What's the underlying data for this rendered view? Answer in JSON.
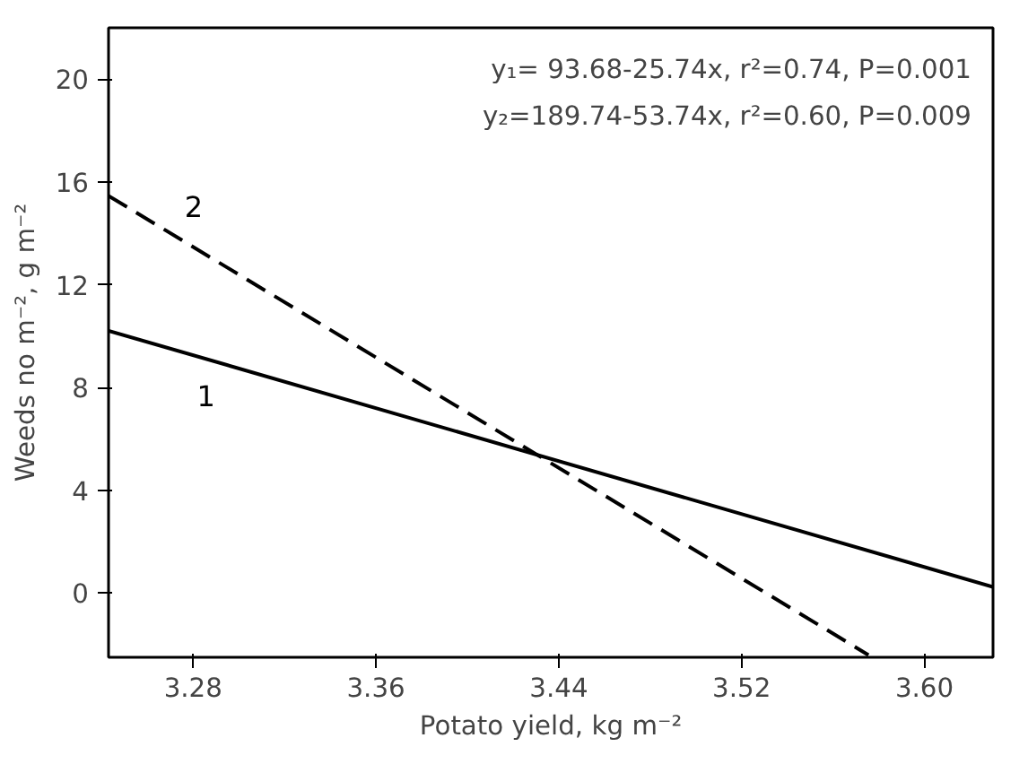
{
  "chart_data": {
    "type": "line",
    "xlabel": "Potato yield, kg m⁻²",
    "ylabel": "Weeds no m⁻², g m⁻²",
    "xlim": [
      3.243,
      3.63
    ],
    "ylim": [
      -2.5,
      22
    ],
    "xticks": [
      3.28,
      3.36,
      3.44,
      3.52,
      {
        "value": 3.6,
        "label": "3.60"
      }
    ],
    "yticks": [
      0,
      4,
      8,
      12,
      16,
      20
    ],
    "grid": false,
    "marker": "none",
    "series": [
      {
        "name": "1",
        "color": "#000000",
        "line_style": "solid",
        "x": [
          3.243,
          3.63
        ],
        "values": [
          10.21,
          0.24
        ]
      },
      {
        "name": "2",
        "color": "#000000",
        "line_style": "dashed",
        "x": [
          3.243,
          3.5755
        ],
        "values": [
          15.46,
          -2.41
        ]
      }
    ],
    "annotations": [
      "y₁= 93.68-25.74x, r²=0.74, P=0.001",
      "y₂=189.74-53.74x, r²=0.60, P=0.009"
    ]
  }
}
